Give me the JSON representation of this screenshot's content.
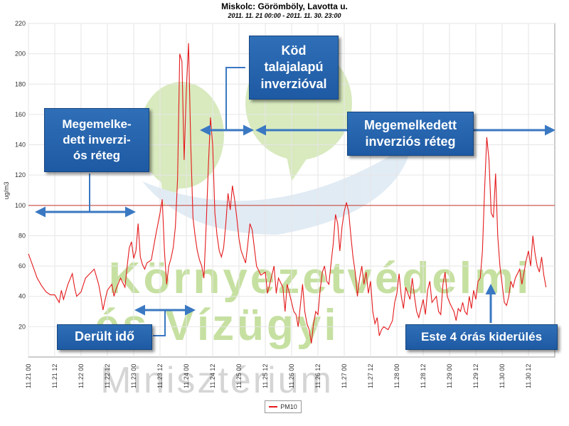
{
  "chart_data": {
    "type": "line",
    "title": "Miskolc: Görömböly, Lavotta u.",
    "subtitle": "2011. 11. 21 00:00 - 2011. 11. 30. 23:00",
    "ylabel": "ug/m3",
    "xlabel": "",
    "ylim": [
      0,
      220
    ],
    "yticks": [
      20,
      40,
      60,
      80,
      100,
      120,
      140,
      160,
      180,
      200,
      220
    ],
    "x_range_hours": [
      0,
      240
    ],
    "x_ticks": [
      {
        "hour": 0,
        "label": "11.21 00"
      },
      {
        "hour": 12,
        "label": "11.21 12"
      },
      {
        "hour": 24,
        "label": "11.22 00"
      },
      {
        "hour": 36,
        "label": "11.22 12"
      },
      {
        "hour": 48,
        "label": "11.23 00"
      },
      {
        "hour": 60,
        "label": "11.23 12"
      },
      {
        "hour": 72,
        "label": "11.24 00"
      },
      {
        "hour": 84,
        "label": "11.24 12"
      },
      {
        "hour": 96,
        "label": "11.25 00"
      },
      {
        "hour": 108,
        "label": "11.25 12"
      },
      {
        "hour": 120,
        "label": "11.26 00"
      },
      {
        "hour": 132,
        "label": "11.26 12"
      },
      {
        "hour": 144,
        "label": "11.27 00"
      },
      {
        "hour": 156,
        "label": "11.27 12"
      },
      {
        "hour": 168,
        "label": "11.28 00"
      },
      {
        "hour": 180,
        "label": "11.28 12"
      },
      {
        "hour": 192,
        "label": "11.29 00"
      },
      {
        "hour": 204,
        "label": "11.29 12"
      },
      {
        "hour": 216,
        "label": "11.30 00"
      },
      {
        "hour": 228,
        "label": "11.30 12"
      }
    ],
    "limit_line": 100,
    "grid": true,
    "legend_position": "bottom-center",
    "series": [
      {
        "name": "PM10",
        "color": "#e41a1c",
        "points": [
          [
            0,
            68
          ],
          [
            2,
            60
          ],
          [
            4,
            52
          ],
          [
            6,
            47
          ],
          [
            8,
            43
          ],
          [
            10,
            41
          ],
          [
            12,
            41
          ],
          [
            14,
            36
          ],
          [
            15,
            44
          ],
          [
            16,
            38
          ],
          [
            18,
            48
          ],
          [
            20,
            55
          ],
          [
            21,
            46
          ],
          [
            22,
            40
          ],
          [
            24,
            43
          ],
          [
            26,
            52
          ],
          [
            28,
            55
          ],
          [
            30,
            58
          ],
          [
            32,
            48
          ],
          [
            33,
            40
          ],
          [
            34,
            31
          ],
          [
            35,
            38
          ],
          [
            36,
            44
          ],
          [
            38,
            48
          ],
          [
            39,
            40
          ],
          [
            40,
            45
          ],
          [
            42,
            52
          ],
          [
            44,
            46
          ],
          [
            45,
            60
          ],
          [
            46,
            72
          ],
          [
            47,
            76
          ],
          [
            48,
            65
          ],
          [
            49,
            70
          ],
          [
            50,
            88
          ],
          [
            51,
            66
          ],
          [
            52,
            61
          ],
          [
            53,
            58
          ],
          [
            54,
            62
          ],
          [
            56,
            64
          ],
          [
            58,
            80
          ],
          [
            60,
            95
          ],
          [
            61,
            104
          ],
          [
            62,
            70
          ],
          [
            63,
            48
          ],
          [
            64,
            60
          ],
          [
            65,
            65
          ],
          [
            66,
            72
          ],
          [
            67,
            86
          ],
          [
            68,
            118
          ],
          [
            69,
            200
          ],
          [
            70,
            195
          ],
          [
            71,
            130
          ],
          [
            72,
            176
          ],
          [
            73,
            207
          ],
          [
            74,
            140
          ],
          [
            75,
            92
          ],
          [
            76,
            80
          ],
          [
            77,
            70
          ],
          [
            78,
            64
          ],
          [
            79,
            60
          ],
          [
            80,
            52
          ],
          [
            81,
            86
          ],
          [
            82,
            124
          ],
          [
            83,
            158
          ],
          [
            84,
            140
          ],
          [
            85,
            95
          ],
          [
            86,
            80
          ],
          [
            87,
            70
          ],
          [
            88,
            66
          ],
          [
            89,
            72
          ],
          [
            90,
            88
          ],
          [
            91,
            108
          ],
          [
            92,
            97
          ],
          [
            93,
            113
          ],
          [
            94,
            104
          ],
          [
            95,
            92
          ],
          [
            96,
            78
          ],
          [
            97,
            70
          ],
          [
            98,
            66
          ],
          [
            99,
            62
          ],
          [
            100,
            74
          ],
          [
            101,
            88
          ],
          [
            102,
            84
          ],
          [
            103,
            72
          ],
          [
            104,
            60
          ],
          [
            106,
            54
          ],
          [
            108,
            56
          ],
          [
            109,
            42
          ],
          [
            110,
            48
          ],
          [
            112,
            60
          ],
          [
            113,
            42
          ],
          [
            114,
            52
          ],
          [
            116,
            46
          ],
          [
            117,
            30
          ],
          [
            118,
            48
          ],
          [
            120,
            36
          ],
          [
            121,
            30
          ],
          [
            122,
            28
          ],
          [
            123,
            20
          ],
          [
            124,
            34
          ],
          [
            125,
            48
          ],
          [
            126,
            30
          ],
          [
            127,
            22
          ],
          [
            128,
            18
          ],
          [
            129,
            9
          ],
          [
            130,
            22
          ],
          [
            131,
            30
          ],
          [
            132,
            28
          ],
          [
            133,
            44
          ],
          [
            134,
            56
          ],
          [
            135,
            60
          ],
          [
            136,
            50
          ],
          [
            137,
            48
          ],
          [
            138,
            62
          ],
          [
            139,
            75
          ],
          [
            140,
            94
          ],
          [
            141,
            88
          ],
          [
            142,
            70
          ],
          [
            143,
            86
          ],
          [
            144,
            96
          ],
          [
            145,
            102
          ],
          [
            146,
            96
          ],
          [
            147,
            80
          ],
          [
            148,
            66
          ],
          [
            149,
            56
          ],
          [
            150,
            40
          ],
          [
            151,
            52
          ],
          [
            152,
            60
          ],
          [
            153,
            48
          ],
          [
            154,
            56
          ],
          [
            155,
            42
          ],
          [
            156,
            50
          ],
          [
            157,
            30
          ],
          [
            158,
            22
          ],
          [
            159,
            26
          ],
          [
            160,
            14
          ],
          [
            161,
            18
          ],
          [
            162,
            20
          ],
          [
            164,
            18
          ],
          [
            166,
            24
          ],
          [
            167,
            36
          ],
          [
            168,
            42
          ],
          [
            169,
            55
          ],
          [
            170,
            40
          ],
          [
            171,
            32
          ],
          [
            172,
            46
          ],
          [
            174,
            38
          ],
          [
            175,
            52
          ],
          [
            176,
            40
          ],
          [
            177,
            30
          ],
          [
            178,
            26
          ],
          [
            180,
            38
          ],
          [
            181,
            28
          ],
          [
            182,
            44
          ],
          [
            183,
            50
          ],
          [
            184,
            36
          ],
          [
            186,
            40
          ],
          [
            187,
            30
          ],
          [
            188,
            28
          ],
          [
            189,
            48
          ],
          [
            190,
            56
          ],
          [
            191,
            40
          ],
          [
            192,
            36
          ],
          [
            194,
            30
          ],
          [
            195,
            24
          ],
          [
            196,
            32
          ],
          [
            197,
            30
          ],
          [
            198,
            36
          ],
          [
            199,
            30
          ],
          [
            200,
            28
          ],
          [
            201,
            40
          ],
          [
            202,
            32
          ],
          [
            203,
            44
          ],
          [
            204,
            38
          ],
          [
            205,
            50
          ],
          [
            206,
            52
          ],
          [
            207,
            70
          ],
          [
            208,
            110
          ],
          [
            209,
            145
          ],
          [
            210,
            130
          ],
          [
            211,
            95
          ],
          [
            212,
            92
          ],
          [
            213,
            121
          ],
          [
            214,
            80
          ],
          [
            215,
            60
          ],
          [
            216,
            48
          ],
          [
            217,
            36
          ],
          [
            218,
            34
          ],
          [
            219,
            40
          ],
          [
            220,
            50
          ],
          [
            221,
            46
          ],
          [
            222,
            52
          ],
          [
            224,
            58
          ],
          [
            225,
            48
          ],
          [
            226,
            56
          ],
          [
            227,
            64
          ],
          [
            228,
            70
          ],
          [
            229,
            60
          ],
          [
            230,
            80
          ],
          [
            231,
            68
          ],
          [
            232,
            60
          ],
          [
            233,
            56
          ],
          [
            234,
            66
          ],
          [
            235,
            54
          ],
          [
            236,
            46
          ]
        ]
      }
    ]
  },
  "watermark": {
    "lines": [
      "Környezetvédelmi",
      "és Vízügyi",
      "Minisztérium"
    ]
  },
  "callouts": [
    {
      "id": "megemelkedett-left",
      "text": "Megemelke-\ndett  inverzi-\nós réteg"
    },
    {
      "id": "kod",
      "text": "Köd\ntalajalapú\ninverzióval"
    },
    {
      "id": "megemelkedett-right",
      "text": "Megemelkedett\ninverziós réteg"
    },
    {
      "id": "derult",
      "text": "Derült idő"
    },
    {
      "id": "este",
      "text": "Este 4 órás kiderülés"
    }
  ],
  "colors": {
    "series": "#e41a1c",
    "callout_fill": "#2a66b0",
    "arrow": "#3a78c2",
    "watermark_green": "#b9d98a",
    "watermark_blue": "#c9dcec"
  }
}
